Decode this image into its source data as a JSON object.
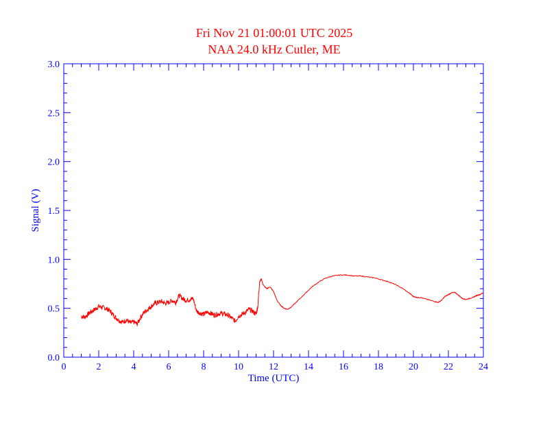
{
  "chart_data": {
    "type": "line",
    "title": "Fri Nov 21 01:00:01 UTC 2025",
    "subtitle": "NAA 24.0 kHz Cutler, ME",
    "xlabel": "Time (UTC)",
    "ylabel": "Signal (V)",
    "xlim": [
      0,
      24
    ],
    "ylim": [
      0.0,
      3.0
    ],
    "x_ticks": [
      "0",
      "2",
      "4",
      "6",
      "8",
      "10",
      "12",
      "14",
      "16",
      "18",
      "20",
      "22",
      "24"
    ],
    "y_ticks": [
      "0.0",
      "0.5",
      "1.0",
      "1.5",
      "2.0",
      "2.5",
      "3.0"
    ],
    "grid": false,
    "colors": {
      "title": "#ff0000",
      "axes": "#0000ff",
      "series": "#ff0000"
    },
    "series": [
      {
        "x": [
          1.0,
          1.2,
          1.4,
          1.6,
          1.8,
          2.0,
          2.2,
          2.4,
          2.6,
          2.8,
          3.0,
          3.2,
          3.4,
          3.6,
          3.8,
          4.0,
          4.2,
          4.4,
          4.6,
          4.8,
          5.0,
          5.2,
          5.4,
          5.6,
          5.8,
          6.0,
          6.2,
          6.4,
          6.6,
          6.8,
          7.0,
          7.2,
          7.4,
          7.6,
          7.8,
          8.0,
          8.2,
          8.4,
          8.6,
          8.8,
          9.0,
          9.2,
          9.4,
          9.6,
          9.8,
          10.0,
          10.2,
          10.4,
          10.6,
          10.8,
          11.0,
          11.1,
          11.2,
          11.3,
          11.4,
          11.6,
          11.8,
          12.0,
          12.2,
          12.4,
          12.6,
          12.8,
          13.0,
          13.4,
          13.8,
          14.2,
          14.6,
          15.0,
          15.4,
          15.8,
          16.2,
          16.6,
          17.0,
          17.4,
          17.8,
          18.2,
          18.6,
          19.0,
          19.4,
          19.8,
          20.0,
          20.2,
          20.4,
          20.8,
          21.2,
          21.4,
          21.6,
          21.8,
          22.0,
          22.2,
          22.4,
          22.6,
          22.8,
          23.0,
          23.2,
          23.4,
          23.6,
          23.8,
          24.0
        ],
        "y": [
          0.42,
          0.41,
          0.44,
          0.47,
          0.49,
          0.52,
          0.51,
          0.5,
          0.48,
          0.44,
          0.4,
          0.37,
          0.36,
          0.38,
          0.35,
          0.36,
          0.34,
          0.41,
          0.46,
          0.49,
          0.52,
          0.55,
          0.56,
          0.57,
          0.55,
          0.56,
          0.58,
          0.56,
          0.63,
          0.6,
          0.58,
          0.59,
          0.6,
          0.47,
          0.45,
          0.44,
          0.46,
          0.45,
          0.43,
          0.44,
          0.45,
          0.44,
          0.43,
          0.4,
          0.37,
          0.42,
          0.44,
          0.46,
          0.49,
          0.47,
          0.44,
          0.52,
          0.77,
          0.8,
          0.74,
          0.7,
          0.72,
          0.67,
          0.58,
          0.53,
          0.5,
          0.49,
          0.51,
          0.58,
          0.65,
          0.72,
          0.77,
          0.81,
          0.83,
          0.84,
          0.84,
          0.83,
          0.83,
          0.82,
          0.81,
          0.79,
          0.77,
          0.74,
          0.7,
          0.65,
          0.62,
          0.61,
          0.61,
          0.59,
          0.57,
          0.56,
          0.58,
          0.62,
          0.64,
          0.66,
          0.66,
          0.63,
          0.6,
          0.59,
          0.6,
          0.61,
          0.63,
          0.64,
          0.66
        ]
      }
    ]
  }
}
